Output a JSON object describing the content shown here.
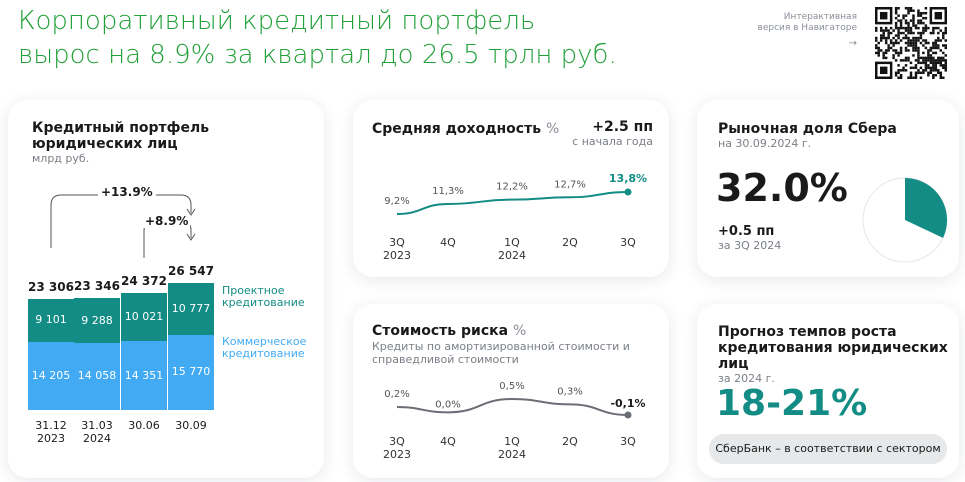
{
  "headline": {
    "line1": "Корпоративный кредитный портфель",
    "line2": "вырос на 8.9% за квартал до 26.5 трлн руб."
  },
  "qr": {
    "note_line1": "Интерактивная",
    "note_line2": "версия в Навигаторе",
    "arrow": "→",
    "icon": "qr-code-icon"
  },
  "colors": {
    "green": "#21a038",
    "teal": "#128c84",
    "blue": "#42aaf3",
    "gray_line": "#6b6f75"
  },
  "portfolio": {
    "title_line1": "Кредитный портфель",
    "title_line2": "юридических лиц",
    "unit": "млрд руб.",
    "growth_year": "+13.9%",
    "growth_quarter": "+8.9%",
    "legend_project_line1": "Проектное",
    "legend_project_line2": "кредитование",
    "legend_commercial_line1": "Коммерческое",
    "legend_commercial_line2": "кредитование"
  },
  "yield": {
    "title": "Средняя доходность",
    "unit": "%",
    "delta": "+2.5 пп",
    "delta_sub": "с начала года"
  },
  "risk": {
    "title": "Стоимость риска",
    "unit": "%",
    "sub_line1": "Кредиты по амортизированной стоимости и",
    "sub_line2": "справедливой стоимости"
  },
  "share": {
    "title": "Рыночная доля Сбера",
    "date": "на 30.09.2024 г.",
    "value": "32.0%",
    "delta": "+0.5 пп",
    "delta_sub": "за 3Q 2024"
  },
  "forecast": {
    "title_line1": "Прогноз темпов роста",
    "title_line2": "кредитования юридических лиц",
    "period": "за 2024 г.",
    "value": "18-21%",
    "note": "СберБанк – в соответствии с сектором"
  },
  "chart_data": [
    {
      "type": "bar",
      "stacked": true,
      "categories": [
        [
          "31.12",
          "2023"
        ],
        [
          "31.03",
          "2024"
        ],
        [
          "30.06",
          ""
        ],
        [
          "30.09",
          ""
        ]
      ],
      "series": [
        {
          "name": "Коммерческое кредитование",
          "values": [
            14205,
            14058,
            14351,
            15770
          ],
          "labels": [
            "14 205",
            "14 058",
            "14 351",
            "15 770"
          ],
          "color": "#42aaf3"
        },
        {
          "name": "Проектное кредитование",
          "values": [
            9101,
            9288,
            10021,
            10777
          ],
          "labels": [
            "9 101",
            "9 288",
            "10 021",
            "10 777"
          ],
          "color": "#128c84"
        }
      ],
      "totals": [
        23306,
        23346,
        24372,
        26547
      ],
      "total_labels": [
        "23 306",
        "23 346",
        "24 372",
        "26 547"
      ]
    },
    {
      "type": "line",
      "categories": [
        [
          "3Q",
          "2023"
        ],
        [
          "4Q",
          ""
        ],
        [
          "1Q",
          "2024"
        ],
        [
          "2Q",
          ""
        ],
        [
          "3Q",
          ""
        ]
      ],
      "values": [
        9.2,
        11.3,
        12.2,
        12.7,
        13.8
      ],
      "labels": [
        "9,2%",
        "11,3%",
        "12,2%",
        "12,7%",
        "13,8%"
      ],
      "color": "#128c84"
    },
    {
      "type": "line",
      "categories": [
        [
          "3Q",
          "2023"
        ],
        [
          "4Q",
          ""
        ],
        [
          "1Q",
          "2024"
        ],
        [
          "2Q",
          ""
        ],
        [
          "3Q",
          ""
        ]
      ],
      "values": [
        0.2,
        0.0,
        0.5,
        0.3,
        -0.1
      ],
      "labels": [
        "0,2%",
        "0,0%",
        "0,5%",
        "0,3%",
        "-0,1%"
      ],
      "color": "#6b6f75"
    },
    {
      "type": "pie",
      "values": [
        32.0,
        68.0
      ],
      "colors": [
        "#128c84",
        "#ffffff"
      ]
    }
  ]
}
